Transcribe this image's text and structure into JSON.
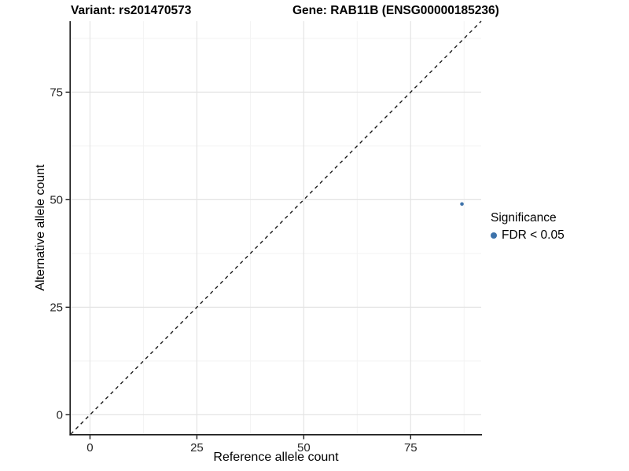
{
  "header": {
    "variant_title": "Variant: rs201470573",
    "gene_title": "Gene: RAB11B (ENSG00000185236)"
  },
  "chart_data": {
    "type": "scatter",
    "title": "Variant: rs201470573 / Gene: RAB11B (ENSG00000185236)",
    "xlabel": "Reference allele count",
    "ylabel": "Alternative allele count",
    "xlim": [
      -4.5,
      91.5
    ],
    "ylim": [
      -4.5,
      91.5
    ],
    "x_ticks": [
      0,
      25,
      50,
      75
    ],
    "y_ticks": [
      0,
      25,
      50,
      75
    ],
    "minor_gridlines": [
      12.5,
      37.5,
      62.5,
      87.5
    ],
    "grid": "major and minor, light gray on white",
    "identity_line": {
      "equation": "y = x",
      "style": "dashed",
      "color": "#1a1a1a"
    },
    "series": [
      {
        "name": "FDR < 0.05",
        "color": "#3d72aa",
        "points": [
          {
            "x": 87,
            "y": 49
          }
        ]
      }
    ],
    "legend": {
      "title": "Significance",
      "position": "right",
      "entries": [
        {
          "label": "FDR < 0.05",
          "color": "#3d72aa"
        }
      ]
    }
  },
  "style": {
    "grid_major_color": "#e4e4e4",
    "grid_minor_color": "#f3f3f3",
    "axis_color": "#1a1a1a",
    "tick_label_color": "#262626",
    "point_color": "#3d72aa"
  }
}
